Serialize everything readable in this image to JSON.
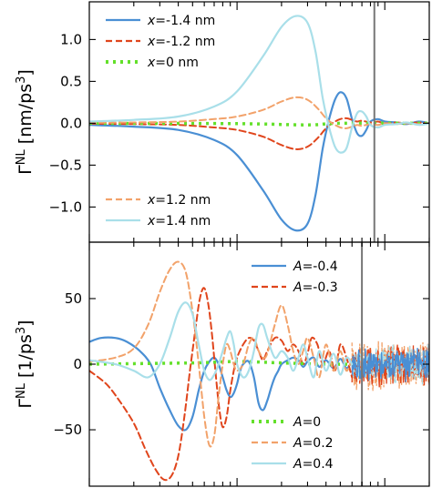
{
  "chart_data": [
    {
      "type": "line",
      "ylabel": "Γ^NL [nm/ps^3]",
      "ylabel_main": "Γ",
      "ylabel_sup": "NL",
      "ylabel_unit": " [nm/ps",
      "ylabel_unit_sup": "3",
      "ylabel_unit_end": "]",
      "ylim": [
        -1.42,
        1.45
      ],
      "xscale": "log",
      "xlim": [
        0.1,
        20
      ],
      "yticks": [
        1.0,
        0.5,
        0.0,
        -0.5,
        -1.0
      ],
      "ytick_labels": [
        "1.0",
        "0.5",
        "0.0",
        "−0.5",
        "−1.0"
      ],
      "vline_x": 8.5,
      "legend_upper": {
        "placement": "top-left",
        "entries": [
          {
            "var": "x",
            "text": "=-1.4 nm",
            "color": "#4a8fd4",
            "dash": "solid"
          },
          {
            "var": "x",
            "text": "=-1.2 nm",
            "color": "#e0451c",
            "dash": "dashed"
          },
          {
            "var": "x",
            "text": "=0 nm",
            "color": "#63e02a",
            "dash": "dotted"
          }
        ]
      },
      "legend_lower": {
        "placement": "bottom-left",
        "entries": [
          {
            "var": "x",
            "text": "=1.2 nm",
            "color": "#f2a26a",
            "dash": "dashed"
          },
          {
            "var": "x",
            "text": "=1.4 nm",
            "color": "#a9dfe9",
            "dash": "solid"
          }
        ]
      },
      "series": [
        {
          "name": "x=-1.4 nm",
          "color": "#4a8fd4",
          "dash": "solid",
          "width": 2.2,
          "x": [
            0.1,
            0.2,
            0.4,
            0.7,
            1.0,
            1.5,
            2.0,
            2.5,
            3.0,
            3.4,
            3.8,
            4.2,
            4.6,
            5.0,
            5.5,
            6.0,
            6.5,
            7.0,
            7.5,
            8.0,
            9.0,
            10,
            12,
            14,
            17,
            20
          ],
          "y": [
            -0.02,
            -0.04,
            -0.08,
            -0.2,
            -0.38,
            -0.8,
            -1.15,
            -1.28,
            -1.2,
            -0.85,
            -0.3,
            0.05,
            0.28,
            0.37,
            0.3,
            0.05,
            -0.12,
            -0.15,
            -0.08,
            0.02,
            0.05,
            0.02,
            0.01,
            -0.01,
            0.02,
            0.0
          ]
        },
        {
          "name": "x=-1.2 nm",
          "color": "#e0451c",
          "dash": "dashed",
          "width": 2.0,
          "x": [
            0.1,
            0.2,
            0.4,
            0.7,
            1.0,
            1.5,
            2.0,
            2.5,
            3.0,
            3.5,
            4.0,
            4.5,
            5.0,
            5.5,
            6.0,
            6.5,
            7.0,
            8.0,
            9.0,
            10,
            12,
            14,
            17,
            20
          ],
          "y": [
            -0.005,
            -0.01,
            -0.02,
            -0.05,
            -0.08,
            -0.16,
            -0.26,
            -0.31,
            -0.28,
            -0.18,
            -0.06,
            0.01,
            0.05,
            0.06,
            0.04,
            0.02,
            0.03,
            0.01,
            0.02,
            0.0,
            0.01,
            0.0,
            0.01,
            0.0
          ]
        },
        {
          "name": "x=0 nm",
          "color": "#63e02a",
          "dash": "dotted",
          "width": 3.5,
          "x": [
            0.1,
            1.0,
            3.0,
            5.0,
            20
          ],
          "y": [
            0.0,
            -0.005,
            -0.02,
            0.0,
            0.0
          ]
        },
        {
          "name": "x=1.2 nm",
          "color": "#f2a26a",
          "dash": "dashed",
          "width": 2.0,
          "x": [
            0.1,
            0.2,
            0.4,
            0.7,
            1.0,
            1.5,
            2.0,
            2.5,
            3.0,
            3.5,
            4.0,
            4.5,
            5.0,
            5.5,
            6.0,
            6.5,
            7.0,
            8.0,
            9.0,
            10,
            12,
            14,
            17,
            20
          ],
          "y": [
            0.005,
            0.01,
            0.02,
            0.05,
            0.08,
            0.16,
            0.26,
            0.31,
            0.28,
            0.18,
            0.06,
            -0.01,
            -0.05,
            -0.06,
            -0.04,
            -0.02,
            -0.03,
            -0.01,
            -0.02,
            0.0,
            -0.01,
            0.0,
            -0.01,
            0.0
          ]
        },
        {
          "name": "x=1.4 nm",
          "color": "#a9dfe9",
          "dash": "solid",
          "width": 2.2,
          "x": [
            0.1,
            0.2,
            0.4,
            0.7,
            1.0,
            1.5,
            2.0,
            2.5,
            3.0,
            3.4,
            3.8,
            4.2,
            4.6,
            5.0,
            5.5,
            6.0,
            6.5,
            7.0,
            7.5,
            8.0,
            9.0,
            10,
            12,
            14,
            17,
            20
          ],
          "y": [
            0.02,
            0.04,
            0.08,
            0.2,
            0.38,
            0.8,
            1.15,
            1.28,
            1.2,
            0.85,
            0.3,
            -0.05,
            -0.28,
            -0.35,
            -0.3,
            -0.05,
            0.12,
            0.14,
            0.08,
            -0.02,
            -0.05,
            -0.02,
            -0.01,
            0.01,
            -0.02,
            0.0
          ]
        }
      ]
    },
    {
      "type": "line",
      "ylabel": "Γ^NL [1/ps^3]",
      "ylabel_main": "Γ",
      "ylabel_sup": "NL",
      "ylabel_unit": " [1/ps",
      "ylabel_unit_sup": "3",
      "ylabel_unit_end": "]",
      "ylim": [
        -93,
        93
      ],
      "xscale": "log",
      "xlim": [
        0.1,
        20
      ],
      "yticks": [
        50,
        0,
        -50
      ],
      "ytick_labels": [
        "50",
        "0",
        "−50"
      ],
      "vline_x": 7.0,
      "legend_upper": {
        "placement": "top-right",
        "entries": [
          {
            "var": "A",
            "text": "=-0.4",
            "color": "#4a8fd4",
            "dash": "solid"
          },
          {
            "var": "A",
            "text": "=-0.3",
            "color": "#e0451c",
            "dash": "dashed"
          }
        ]
      },
      "legend_lower": {
        "placement": "bottom-right",
        "entries": [
          {
            "var": "A",
            "text": "=0",
            "color": "#63e02a",
            "dash": "dotted"
          },
          {
            "var": "A",
            "text": "=0.2",
            "color": "#f2a26a",
            "dash": "dashed"
          },
          {
            "var": "A",
            "text": "=0.4",
            "color": "#a9dfe9",
            "dash": "solid"
          }
        ]
      },
      "series": [
        {
          "name": "A=-0.4",
          "color": "#4a8fd4",
          "dash": "solid",
          "width": 2.2,
          "x": [
            0.1,
            0.12,
            0.15,
            0.18,
            0.22,
            0.26,
            0.3,
            0.35,
            0.4,
            0.45,
            0.5,
            0.55,
            0.6,
            0.65,
            0.7,
            0.75,
            0.8,
            0.85,
            0.9,
            0.95,
            1.0,
            1.05,
            1.1,
            1.2,
            1.3,
            1.4,
            1.5,
            1.6,
            1.7,
            1.8,
            1.9,
            2.0,
            2.2,
            2.4,
            2.6,
            2.8,
            3.0,
            3.3,
            3.6,
            4.0,
            4.5,
            5.0,
            5.5,
            6.0
          ],
          "y": [
            17,
            20,
            20,
            17,
            10,
            0,
            -18,
            -35,
            -47,
            -50,
            -40,
            -20,
            -5,
            2,
            5,
            0,
            -10,
            -20,
            -25,
            -22,
            -15,
            -5,
            0,
            2,
            -10,
            -30,
            -35,
            -28,
            -18,
            -10,
            -5,
            0,
            3,
            5,
            3,
            -2,
            2,
            5,
            -2,
            3,
            -3,
            4,
            -3,
            2
          ]
        },
        {
          "name": "A=-0.3",
          "color": "#e0451c",
          "dash": "dashed",
          "width": 2.0,
          "x": [
            0.1,
            0.13,
            0.16,
            0.2,
            0.24,
            0.28,
            0.32,
            0.36,
            0.4,
            0.44,
            0.48,
            0.52,
            0.56,
            0.6,
            0.64,
            0.68,
            0.72,
            0.76,
            0.8,
            0.85,
            0.9,
            0.95,
            1.0,
            1.1,
            1.2,
            1.3,
            1.4,
            1.5,
            1.6,
            1.8,
            2.0,
            2.2,
            2.4,
            2.6,
            2.8,
            3.0,
            3.2,
            3.5,
            3.8,
            4.2,
            4.6,
            5.0,
            5.5,
            6.0
          ],
          "y": [
            -5,
            -15,
            -28,
            -45,
            -65,
            -80,
            -88,
            -85,
            -70,
            -40,
            -5,
            25,
            50,
            58,
            45,
            20,
            -10,
            -35,
            -48,
            -40,
            -20,
            -5,
            5,
            15,
            20,
            18,
            10,
            3,
            10,
            20,
            18,
            10,
            15,
            10,
            0,
            8,
            20,
            15,
            0,
            10,
            -5,
            15,
            5,
            -10
          ]
        },
        {
          "name": "A=0",
          "color": "#63e02a",
          "dash": "dotted",
          "width": 3.5,
          "x": [
            0.1,
            0.5,
            1.0,
            2.0,
            4.0,
            6.0
          ],
          "y": [
            0,
            1,
            2,
            1,
            0,
            0
          ]
        },
        {
          "name": "A=0.2",
          "color": "#f2a26a",
          "dash": "dashed",
          "width": 2.0,
          "x": [
            0.1,
            0.15,
            0.2,
            0.25,
            0.3,
            0.35,
            0.4,
            0.45,
            0.5,
            0.55,
            0.6,
            0.65,
            0.7,
            0.75,
            0.8,
            0.85,
            0.9,
            0.95,
            1.0,
            1.1,
            1.2,
            1.3,
            1.4,
            1.5,
            1.6,
            1.8,
            2.0,
            2.2,
            2.4,
            2.6,
            2.8,
            3.0,
            3.3,
            3.6,
            4.0,
            4.5,
            5.0,
            5.5,
            6.0
          ],
          "y": [
            2,
            5,
            12,
            30,
            55,
            72,
            78,
            70,
            40,
            0,
            -40,
            -62,
            -55,
            -25,
            0,
            15,
            10,
            0,
            -5,
            0,
            15,
            20,
            10,
            5,
            8,
            30,
            45,
            30,
            10,
            0,
            10,
            20,
            5,
            -10,
            15,
            -5,
            10,
            -5,
            5
          ]
        },
        {
          "name": "A=0.4",
          "color": "#a9dfe9",
          "dash": "solid",
          "width": 2.2,
          "x": [
            0.1,
            0.15,
            0.2,
            0.25,
            0.3,
            0.35,
            0.4,
            0.45,
            0.5,
            0.55,
            0.6,
            0.65,
            0.7,
            0.75,
            0.8,
            0.85,
            0.9,
            0.95,
            1.0,
            1.1,
            1.2,
            1.3,
            1.4,
            1.5,
            1.6,
            1.8,
            2.0,
            2.2,
            2.4,
            2.6,
            2.8,
            3.0,
            3.3,
            3.6,
            4.0,
            4.5,
            5.0,
            5.5,
            6.0
          ],
          "y": [
            3,
            0,
            -5,
            -10,
            0,
            20,
            40,
            47,
            38,
            15,
            -5,
            -12,
            -8,
            0,
            10,
            20,
            25,
            15,
            0,
            -10,
            -5,
            10,
            28,
            30,
            20,
            5,
            10,
            5,
            -5,
            5,
            15,
            5,
            -10,
            10,
            -5,
            8,
            -8,
            5,
            0
          ]
        }
      ],
      "noise_region": {
        "x_start": 6.0,
        "x_end": 20,
        "series_colors": [
          "#f2a26a",
          "#e0451c",
          "#a9dfe9",
          "#4a8fd4"
        ],
        "amplitudes": [
          22,
          20,
          16,
          14
        ]
      }
    }
  ]
}
